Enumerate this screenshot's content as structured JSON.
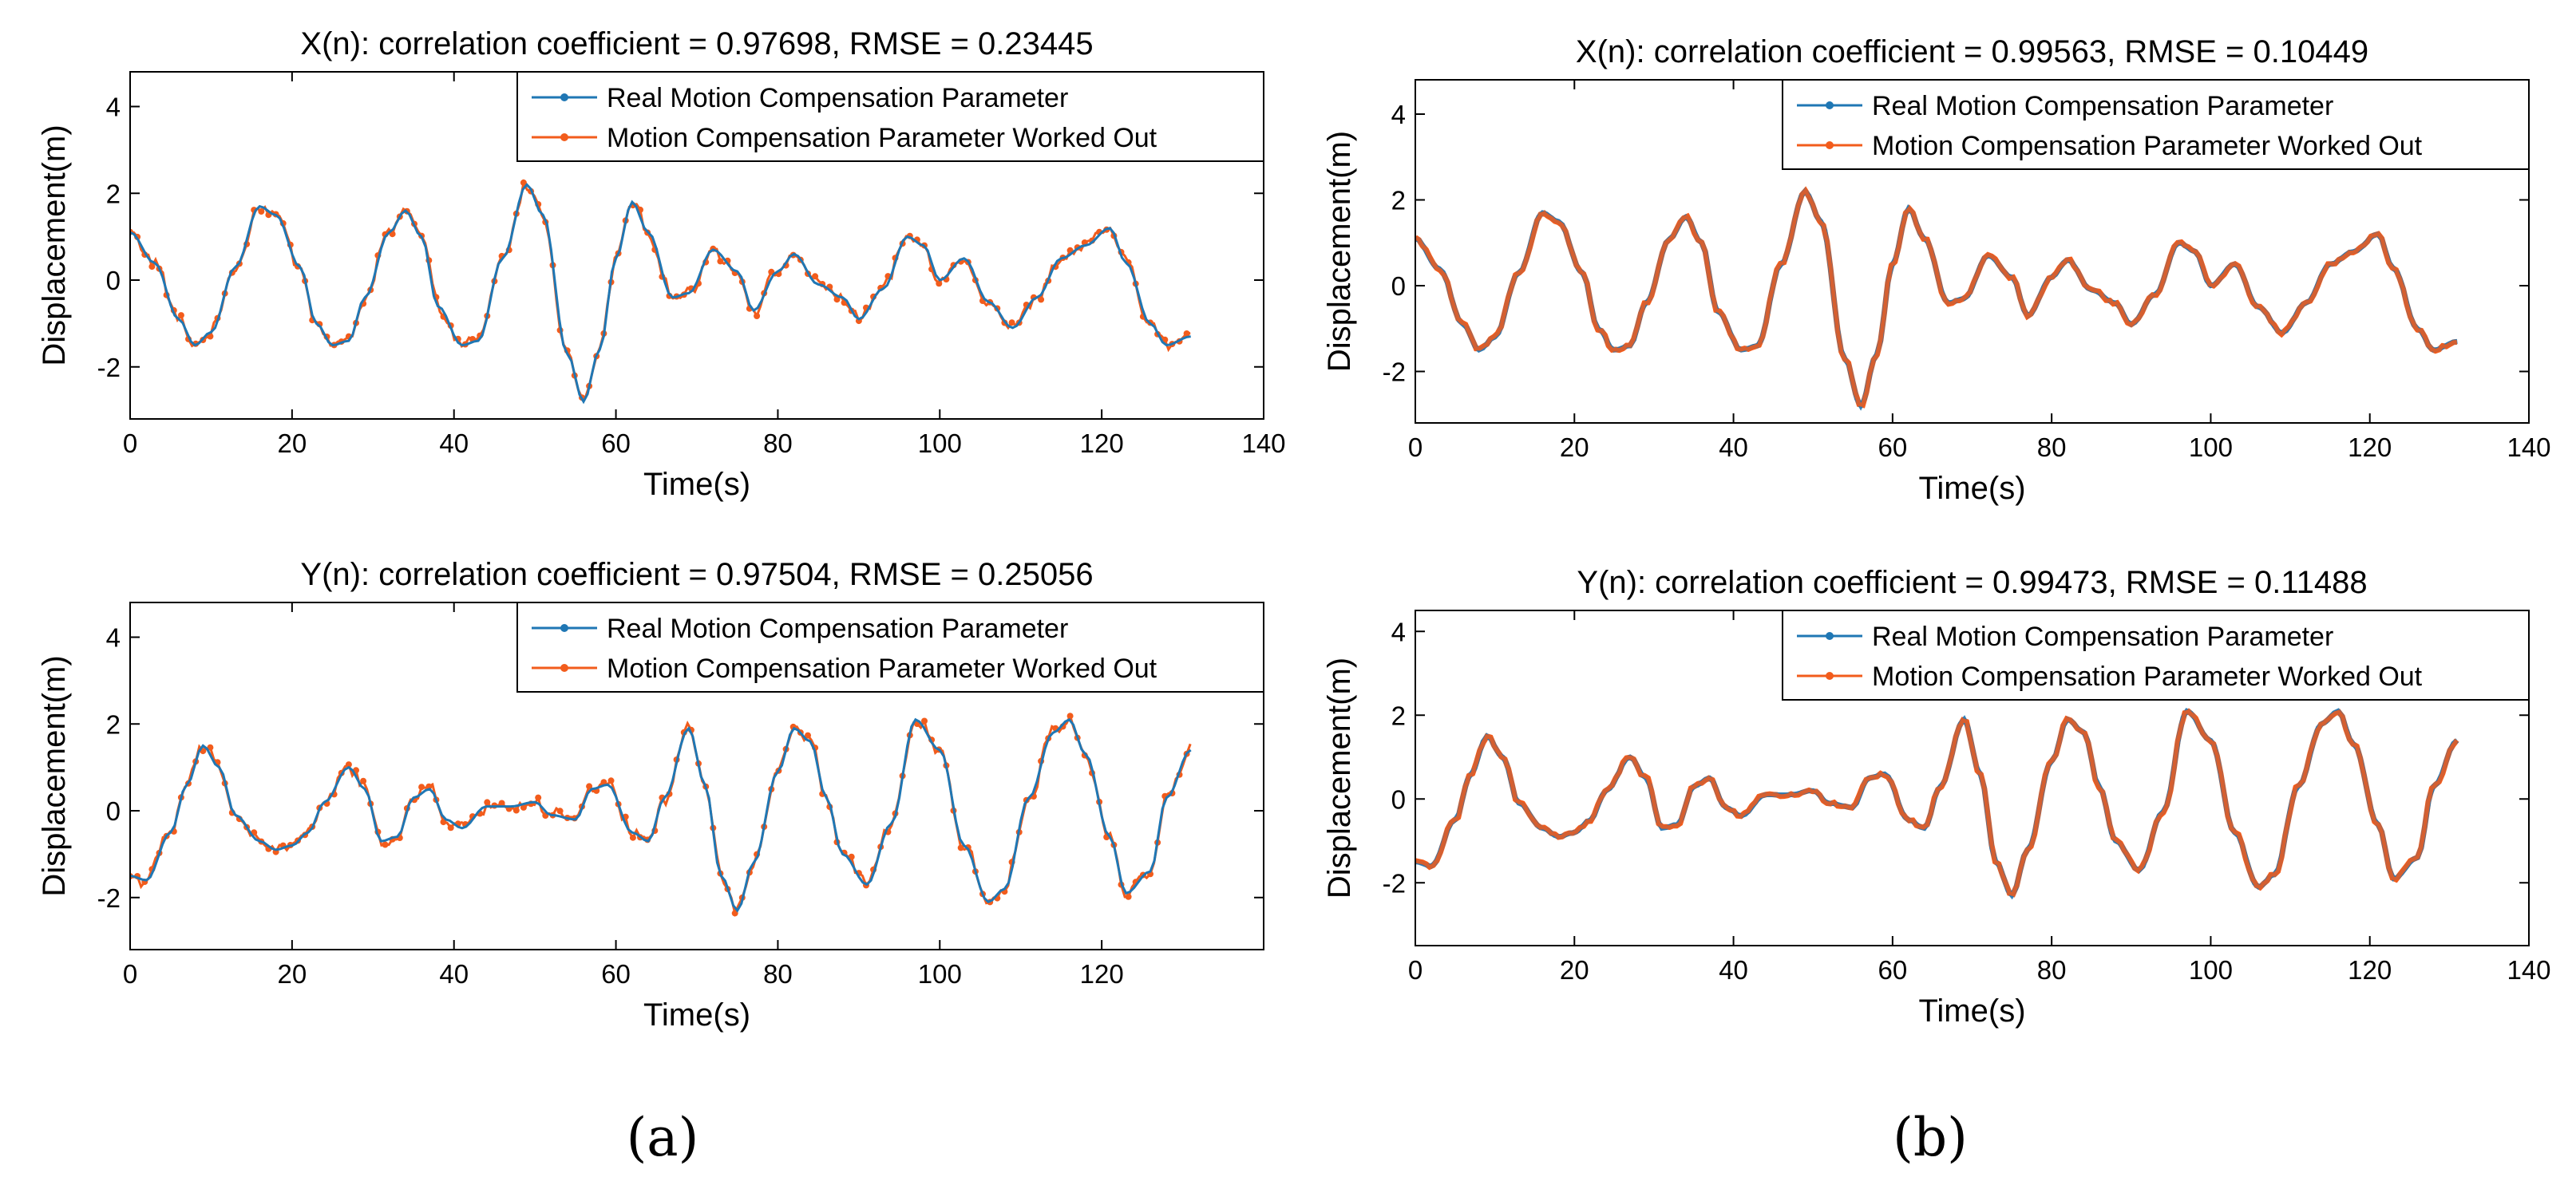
{
  "colors": {
    "real": "#1f77b4",
    "computed": "#f25c1c",
    "axis": "#000000"
  },
  "panel_labels": [
    "(a)",
    "(b)"
  ],
  "chart_data": [
    {
      "type": "line",
      "panel": "a",
      "title": "X(n): correlation coefficient = 0.97698, RMSE = 0.23445",
      "xlabel": "Time(s)",
      "ylabel": "Displacement(m)",
      "xlim": [
        0,
        140
      ],
      "ylim": [
        -3.2,
        4.8
      ],
      "xticks": [
        0,
        20,
        40,
        60,
        80,
        100,
        120,
        140
      ],
      "yticks": [
        -2,
        0,
        2,
        4
      ],
      "legend": [
        "Real Motion Compensation Parameter",
        "Motion Compensation Parameter Worked Out"
      ],
      "legend_position": "top-right",
      "noise": 0.22,
      "series": [
        {
          "name": "Real Motion Compensation Parameter",
          "x": [
            0,
            3,
            6,
            8,
            10,
            13,
            16,
            18,
            21,
            23,
            25,
            27,
            29,
            32,
            34,
            36,
            38,
            41,
            43,
            46,
            49,
            51,
            54,
            56,
            58,
            60,
            62,
            64,
            67,
            69,
            72,
            75,
            77,
            80,
            82,
            85,
            88,
            90,
            93,
            96,
            98,
            100,
            103,
            106,
            109,
            112,
            115,
            118,
            121,
            123,
            126,
            128,
            131
          ],
          "values": [
            1.1,
            0.4,
            -0.9,
            -1.5,
            -1.2,
            0.3,
            1.7,
            1.5,
            0.3,
            -1.0,
            -1.5,
            -1.4,
            -0.4,
            1.1,
            1.6,
            1.0,
            -0.6,
            -1.5,
            -1.4,
            0.5,
            2.2,
            1.5,
            -1.7,
            -2.8,
            -1.6,
            0.5,
            1.8,
            1.1,
            -0.4,
            -0.3,
            0.7,
            0.2,
            -0.7,
            0.2,
            0.6,
            -0.1,
            -0.4,
            -0.9,
            -0.2,
            1.0,
            0.8,
            0.0,
            0.5,
            -0.5,
            -1.1,
            -0.4,
            0.5,
            0.8,
            1.2,
            0.4,
            -1.0,
            -1.5,
            -1.3
          ]
        },
        {
          "name": "Motion Compensation Parameter Worked Out",
          "derived_from": "Real Motion Compensation Parameter"
        }
      ]
    },
    {
      "type": "line",
      "panel": "a",
      "title": "Y(n): correlation coefficient = 0.97504, RMSE = 0.25056",
      "xlabel": "Time(s)",
      "ylabel": "Displacement(m)",
      "xlim": [
        0,
        140
      ],
      "ylim": [
        -3.2,
        4.8
      ],
      "xticks": [
        0,
        20,
        40,
        60,
        80,
        100,
        120
      ],
      "yticks": [
        -2,
        0,
        2,
        4
      ],
      "legend": [
        "Real Motion Compensation Parameter",
        "Motion Compensation Parameter Worked Out"
      ],
      "legend_position": "top-right",
      "noise": 0.24,
      "series": [
        {
          "name": "Real Motion Compensation Parameter",
          "x": [
            0,
            2,
            5,
            7,
            9,
            11,
            13,
            16,
            18,
            20,
            22,
            24,
            27,
            29,
            31,
            33,
            35,
            37,
            39,
            41,
            44,
            47,
            50,
            52,
            55,
            57,
            59,
            62,
            64,
            66,
            69,
            71,
            73,
            75,
            77,
            80,
            82,
            84,
            86,
            88,
            91,
            94,
            97,
            100,
            103,
            106,
            108,
            111,
            114,
            116,
            118,
            121,
            123,
            126,
            128,
            131
          ],
          "values": [
            -1.5,
            -1.6,
            -0.5,
            0.6,
            1.5,
            1.0,
            -0.1,
            -0.7,
            -0.9,
            -0.8,
            -0.5,
            0.2,
            1.0,
            0.5,
            -0.7,
            -0.6,
            0.3,
            0.5,
            -0.2,
            -0.4,
            0.1,
            0.1,
            0.2,
            -0.1,
            -0.2,
            0.5,
            0.6,
            -0.5,
            -0.7,
            0.3,
            1.9,
            0.6,
            -1.5,
            -2.3,
            -1.2,
            0.9,
            1.9,
            1.6,
            0.3,
            -1.0,
            -1.7,
            -0.3,
            2.1,
            1.4,
            -0.8,
            -2.1,
            -1.8,
            0.3,
            1.8,
            2.1,
            1.3,
            -0.6,
            -1.9,
            -1.4,
            0.3,
            1.4
          ]
        },
        {
          "name": "Motion Compensation Parameter Worked Out",
          "derived_from": "Real Motion Compensation Parameter"
        }
      ]
    },
    {
      "type": "line",
      "panel": "b",
      "title": "X(n): correlation coefficient = 0.99563, RMSE = 0.10449",
      "xlabel": "Time(s)",
      "ylabel": "Displacement(m)",
      "xlim": [
        0,
        140
      ],
      "ylim": [
        -3.2,
        4.8
      ],
      "xticks": [
        0,
        20,
        40,
        60,
        80,
        100,
        120,
        140
      ],
      "yticks": [
        -2,
        0,
        2,
        4
      ],
      "legend": [
        "Real Motion Compensation Parameter",
        "Motion Compensation Parameter Worked Out"
      ],
      "legend_position": "top-right",
      "noise": 0.05,
      "series": [
        {
          "name": "Real Motion Compensation Parameter",
          "x": [
            0,
            3,
            6,
            8,
            10,
            13,
            16,
            18,
            21,
            23,
            25,
            27,
            29,
            32,
            34,
            36,
            38,
            41,
            43,
            46,
            49,
            51,
            54,
            56,
            58,
            60,
            62,
            64,
            67,
            69,
            72,
            75,
            77,
            80,
            82,
            85,
            88,
            90,
            93,
            96,
            98,
            100,
            103,
            106,
            109,
            112,
            115,
            118,
            121,
            123,
            126,
            128,
            131
          ],
          "values": [
            1.1,
            0.4,
            -0.9,
            -1.5,
            -1.2,
            0.3,
            1.7,
            1.5,
            0.3,
            -1.0,
            -1.5,
            -1.4,
            -0.4,
            1.1,
            1.6,
            1.0,
            -0.6,
            -1.5,
            -1.4,
            0.5,
            2.2,
            1.5,
            -1.7,
            -2.8,
            -1.6,
            0.5,
            1.8,
            1.1,
            -0.4,
            -0.3,
            0.7,
            0.2,
            -0.7,
            0.2,
            0.6,
            -0.1,
            -0.4,
            -0.9,
            -0.2,
            1.0,
            0.8,
            0.0,
            0.5,
            -0.5,
            -1.1,
            -0.4,
            0.5,
            0.8,
            1.2,
            0.4,
            -1.0,
            -1.5,
            -1.3
          ]
        },
        {
          "name": "Motion Compensation Parameter Worked Out",
          "derived_from": "Real Motion Compensation Parameter"
        }
      ]
    },
    {
      "type": "line",
      "panel": "b",
      "title": "Y(n): correlation coefficient = 0.99473, RMSE = 0.11488",
      "xlabel": "Time(s)",
      "ylabel": "Displacement(m)",
      "xlim": [
        0,
        140
      ],
      "ylim": [
        -3.5,
        4.5
      ],
      "xticks": [
        0,
        20,
        40,
        60,
        80,
        100,
        120,
        140
      ],
      "yticks": [
        -2,
        0,
        2,
        4
      ],
      "legend": [
        "Real Motion Compensation Parameter",
        "Motion Compensation Parameter Worked Out"
      ],
      "legend_position": "top-right",
      "noise": 0.06,
      "series": [
        {
          "name": "Real Motion Compensation Parameter",
          "x": [
            0,
            2,
            5,
            7,
            9,
            11,
            13,
            16,
            18,
            20,
            22,
            24,
            27,
            29,
            31,
            33,
            35,
            37,
            39,
            41,
            44,
            47,
            50,
            52,
            55,
            57,
            59,
            62,
            64,
            66,
            69,
            71,
            73,
            75,
            77,
            80,
            82,
            84,
            86,
            88,
            91,
            94,
            97,
            100,
            103,
            106,
            108,
            111,
            114,
            116,
            118,
            121,
            123,
            126,
            128,
            131
          ],
          "values": [
            -1.5,
            -1.6,
            -0.5,
            0.6,
            1.5,
            1.0,
            -0.1,
            -0.7,
            -0.9,
            -0.8,
            -0.5,
            0.2,
            1.0,
            0.5,
            -0.7,
            -0.6,
            0.3,
            0.5,
            -0.2,
            -0.4,
            0.1,
            0.1,
            0.2,
            -0.1,
            -0.2,
            0.5,
            0.6,
            -0.5,
            -0.7,
            0.3,
            1.9,
            0.6,
            -1.5,
            -2.3,
            -1.2,
            0.9,
            1.9,
            1.6,
            0.3,
            -1.0,
            -1.7,
            -0.3,
            2.1,
            1.4,
            -0.8,
            -2.1,
            -1.8,
            0.3,
            1.8,
            2.1,
            1.3,
            -0.6,
            -1.9,
            -1.4,
            0.3,
            1.4
          ]
        },
        {
          "name": "Motion Compensation Parameter Worked Out",
          "derived_from": "Real Motion Compensation Parameter"
        }
      ]
    }
  ]
}
